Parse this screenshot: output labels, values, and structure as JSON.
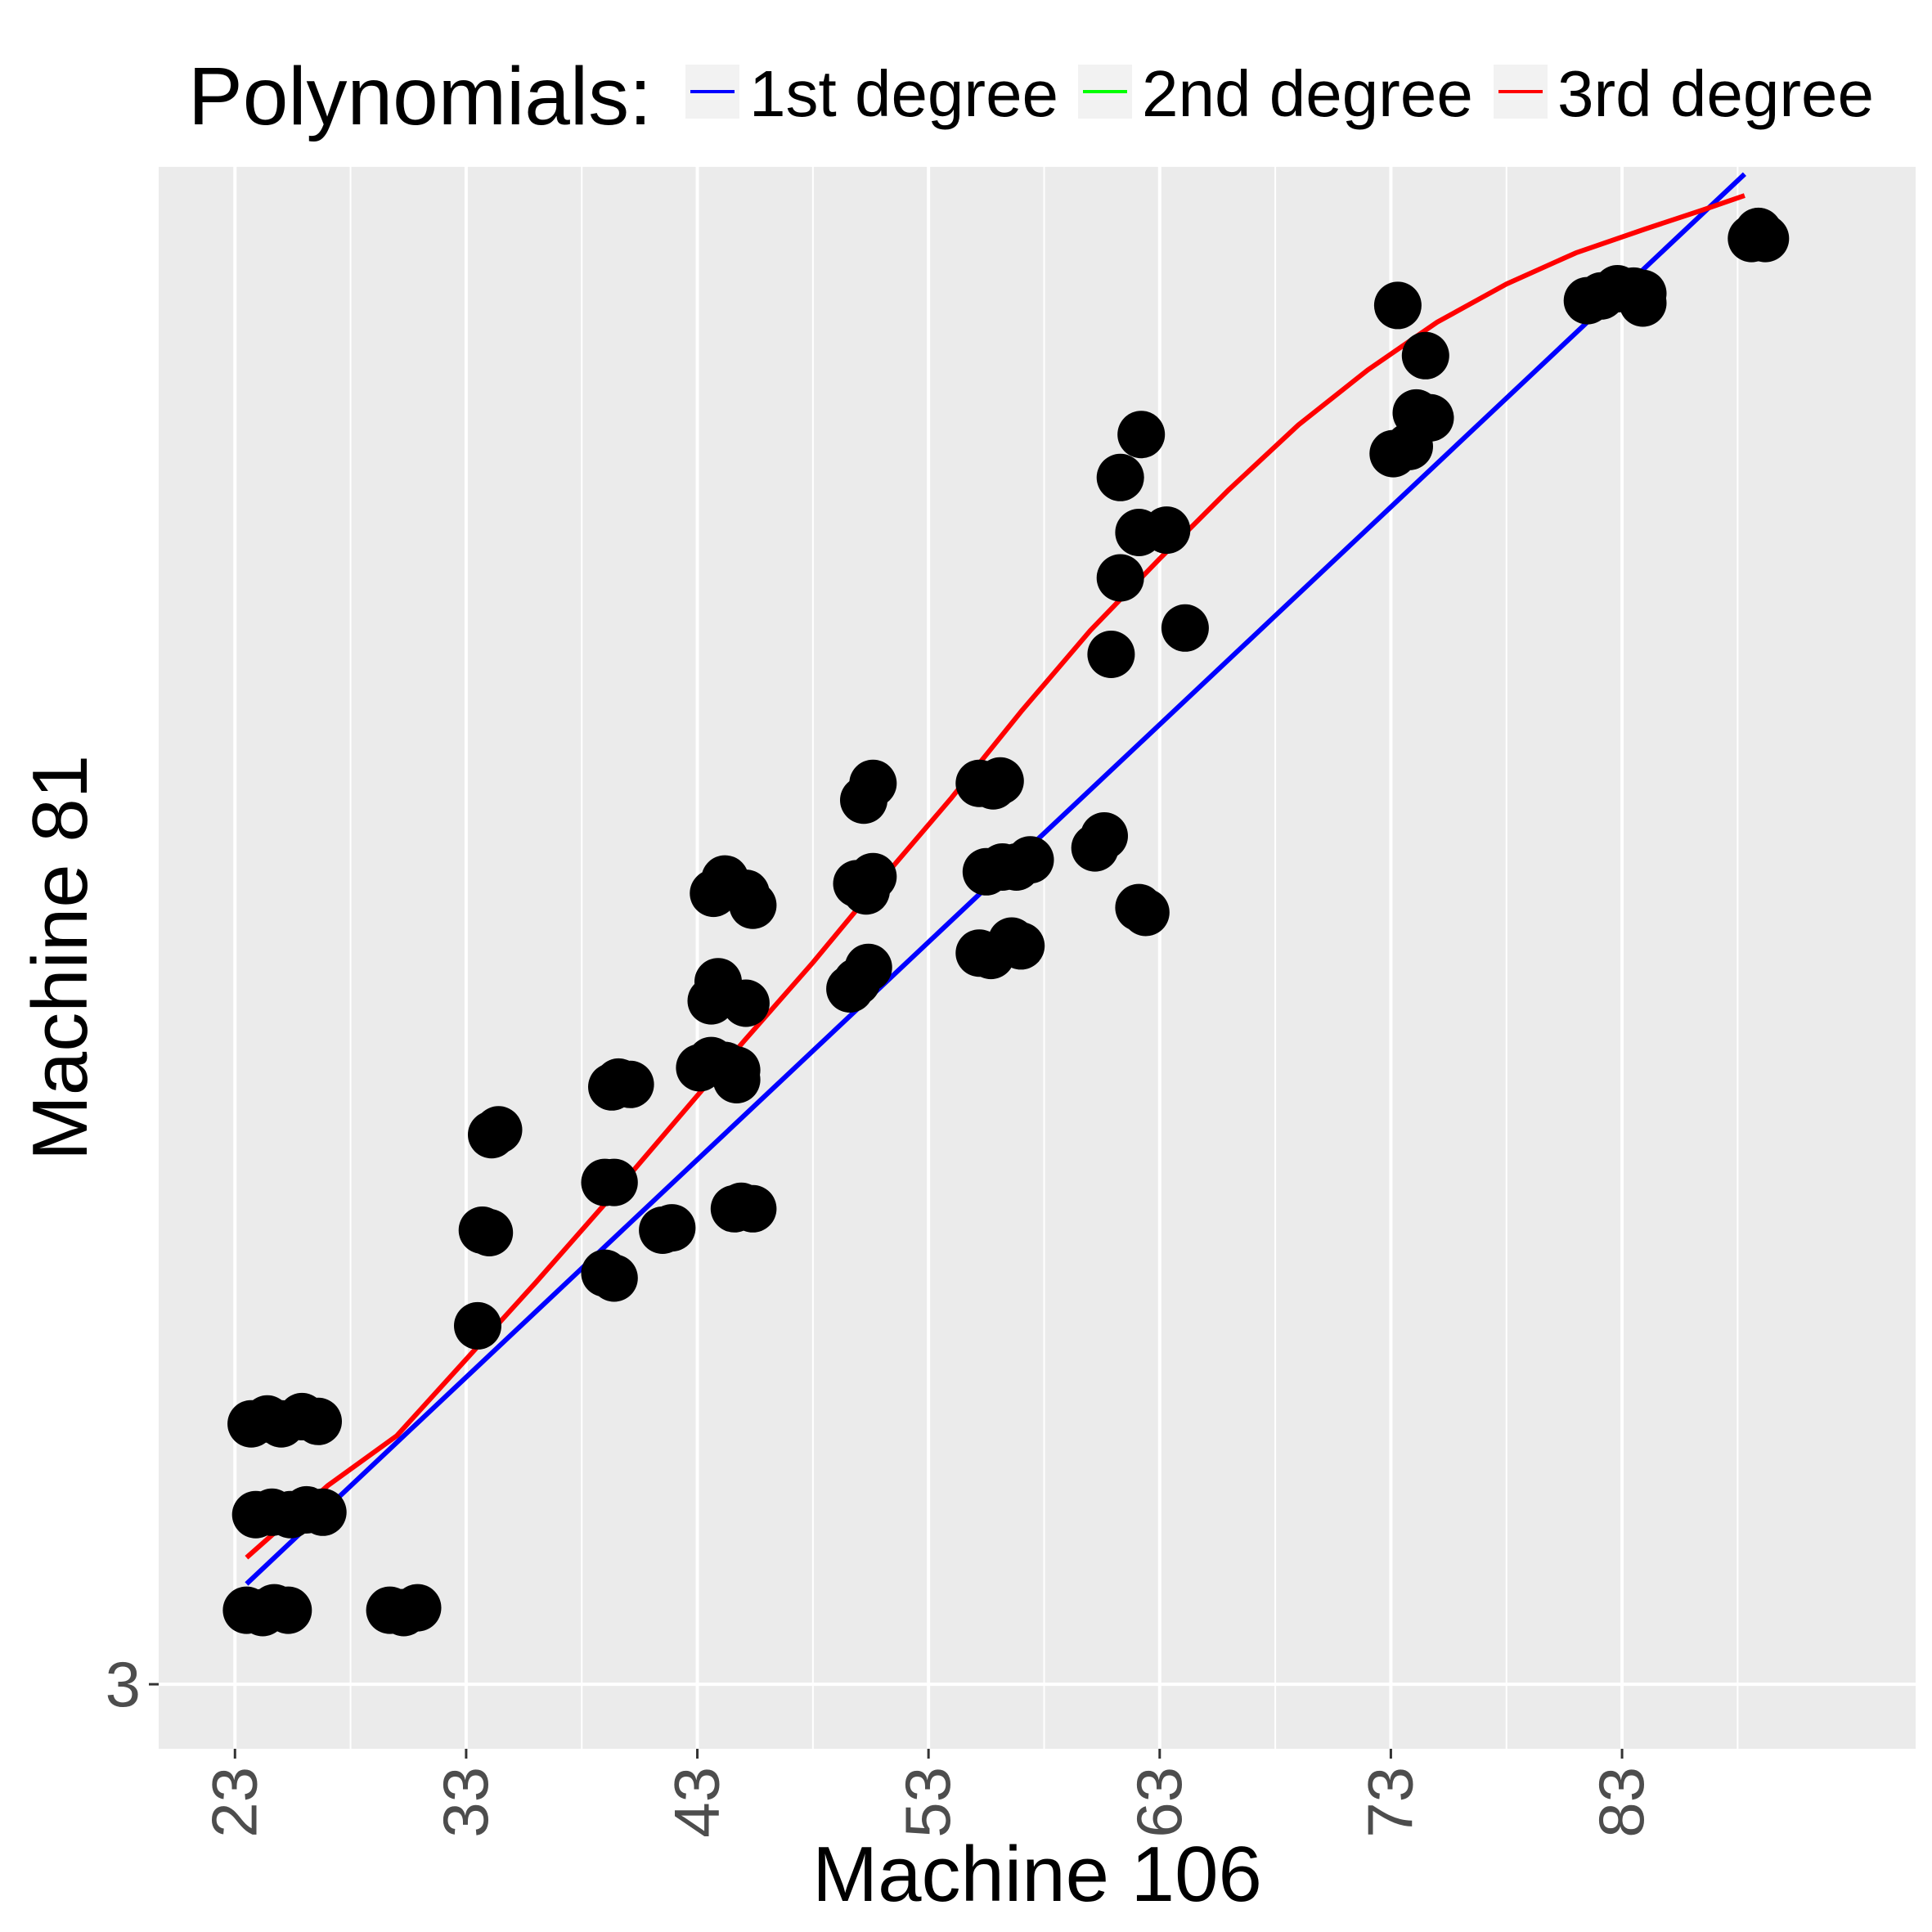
{
  "chart_data": {
    "type": "scatter",
    "title": "",
    "xlabel": "Machine 106",
    "ylabel": "Machine 81",
    "xlim": [
      19.7,
      95.7
    ],
    "ylim": [
      0.3,
      66.5
    ],
    "x_ticks": [
      23,
      33,
      43,
      53,
      63,
      73,
      83
    ],
    "y_ticks": [
      3
    ],
    "x_minor_ticks": [
      28,
      38,
      48,
      58,
      68,
      78,
      88
    ],
    "grid": true,
    "legend": {
      "position": "top",
      "title": "Polynomials:",
      "entries": [
        {
          "label": "1st degree",
          "color": "#0000ff"
        },
        {
          "label": "2nd degree",
          "color": "#00ff00"
        },
        {
          "label": "3rd degree",
          "color": "#ff0000"
        }
      ]
    },
    "colors": {
      "panel": "#ebebeb",
      "grid": "#ffffff",
      "points": "#000000",
      "tick_label": "#4d4d4d"
    },
    "points": [
      [
        23.5,
        6.1
      ],
      [
        24.2,
        6.0
      ],
      [
        24.7,
        6.2
      ],
      [
        25.3,
        6.1
      ],
      [
        29.7,
        6.1
      ],
      [
        30.3,
        6.0
      ],
      [
        30.9,
        6.2
      ],
      [
        23.7,
        13.9
      ],
      [
        24.4,
        14.1
      ],
      [
        25.0,
        13.9
      ],
      [
        25.9,
        14.2
      ],
      [
        26.6,
        14.0
      ],
      [
        23.9,
        10.1
      ],
      [
        24.6,
        10.2
      ],
      [
        25.4,
        10.1
      ],
      [
        26.1,
        10.3
      ],
      [
        26.8,
        10.2
      ],
      [
        33.5,
        18.0
      ],
      [
        33.7,
        22.0
      ],
      [
        34.0,
        21.9
      ],
      [
        34.1,
        26.0
      ],
      [
        34.4,
        26.2
      ],
      [
        39.0,
        20.2
      ],
      [
        39.4,
        20.0
      ],
      [
        39.0,
        24.0
      ],
      [
        39.4,
        24.0
      ],
      [
        39.3,
        28.0
      ],
      [
        39.6,
        28.2
      ],
      [
        40.1,
        28.1
      ],
      [
        41.5,
        22.0
      ],
      [
        41.9,
        22.1
      ],
      [
        43.1,
        28.8
      ],
      [
        43.6,
        29.1
      ],
      [
        44.2,
        28.9
      ],
      [
        44.7,
        28.7
      ],
      [
        44.7,
        28.3
      ],
      [
        43.6,
        31.6
      ],
      [
        43.9,
        32.4
      ],
      [
        45.1,
        31.5
      ],
      [
        43.7,
        36.1
      ],
      [
        44.2,
        36.7
      ],
      [
        45.1,
        36.1
      ],
      [
        45.4,
        35.6
      ],
      [
        44.6,
        22.9
      ],
      [
        44.9,
        23.0
      ],
      [
        45.4,
        22.9
      ],
      [
        49.6,
        32.1
      ],
      [
        49.9,
        32.4
      ],
      [
        50.4,
        33.0
      ],
      [
        49.9,
        36.5
      ],
      [
        50.3,
        36.2
      ],
      [
        50.6,
        36.8
      ],
      [
        50.2,
        40.0
      ],
      [
        50.6,
        40.7
      ],
      [
        55.2,
        33.6
      ],
      [
        55.7,
        33.5
      ],
      [
        56.6,
        34.1
      ],
      [
        57.0,
        33.9
      ],
      [
        55.5,
        37.0
      ],
      [
        56.2,
        37.2
      ],
      [
        56.8,
        37.2
      ],
      [
        57.4,
        37.5
      ],
      [
        55.2,
        40.7
      ],
      [
        55.8,
        40.6
      ],
      [
        56.1,
        40.8
      ],
      [
        60.2,
        38.0
      ],
      [
        60.6,
        38.5
      ],
      [
        62.1,
        35.5
      ],
      [
        62.4,
        35.3
      ],
      [
        60.9,
        46.1
      ],
      [
        61.3,
        49.3
      ],
      [
        61.3,
        53.5
      ],
      [
        62.1,
        51.2
      ],
      [
        63.3,
        51.3
      ],
      [
        62.2,
        55.3
      ],
      [
        64.1,
        47.2
      ],
      [
        73.1,
        54.5
      ],
      [
        73.8,
        54.8
      ],
      [
        74.1,
        56.2
      ],
      [
        74.7,
        56.0
      ],
      [
        73.3,
        60.7
      ],
      [
        74.5,
        58.6
      ],
      [
        81.5,
        60.9
      ],
      [
        82.1,
        61.1
      ],
      [
        82.8,
        61.4
      ],
      [
        83.5,
        61.3
      ],
      [
        83.9,
        61.2
      ],
      [
        83.9,
        60.8
      ],
      [
        88.6,
        63.5
      ],
      [
        88.9,
        63.8
      ],
      [
        89.2,
        63.5
      ]
    ],
    "series": [
      {
        "name": "1st degree",
        "color": "#0000ff",
        "x": [
          23.5,
          88.3
        ],
        "y": [
          7.2,
          66.2
        ]
      },
      {
        "name": "2nd degree",
        "color": "#00ff00",
        "x": [],
        "y": []
      },
      {
        "name": "3rd degree",
        "color": "#ff0000",
        "x": [
          23.5,
          27.0,
          30.0,
          33.0,
          36.0,
          39.0,
          42.0,
          45.0,
          48.0,
          51.0,
          54.0,
          57.0,
          60.0,
          63.0,
          66.0,
          69.0,
          72.0,
          75.0,
          78.0,
          81.0,
          84.0,
          86.5,
          88.3
        ],
        "y": [
          8.3,
          11.3,
          13.4,
          16.6,
          19.8,
          23.1,
          26.5,
          29.9,
          33.2,
          36.7,
          40.1,
          43.7,
          47.1,
          50.1,
          53.0,
          55.7,
          58.0,
          60.0,
          61.6,
          62.9,
          63.9,
          64.7,
          65.3
        ]
      }
    ]
  }
}
